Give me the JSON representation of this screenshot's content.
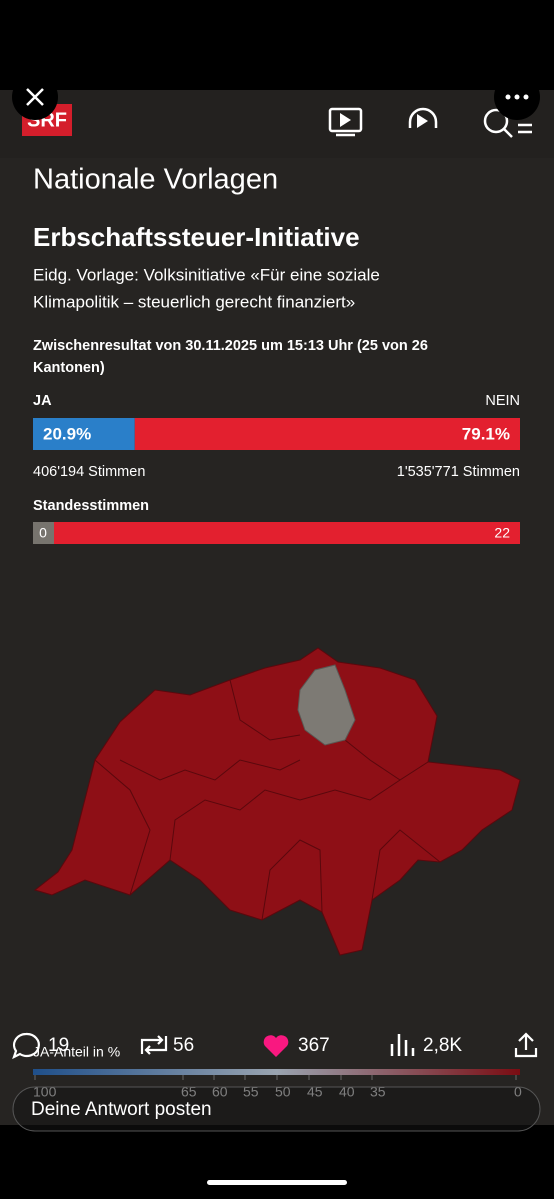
{
  "header": {
    "logo": "SRF"
  },
  "title": "Nationale Vorlagen",
  "subtitle": "Erbschaftssteuer-Initiative",
  "description": [
    "Eidg. Vorlage: Volksinitiative «Für eine soziale",
    "Klimapolitik – steuerlich gerecht finanziert»"
  ],
  "status": [
    "Zwischenresultat von 30.11.2025 um 15:13 Uhr (25 von 26",
    "Kantonen)"
  ],
  "result": {
    "ja_label": "JA",
    "nein_label": "NEIN",
    "ja_share": {
      "value": 20.9,
      "label": "20.9%"
    },
    "nein_share": {
      "value": 79.1,
      "label": "79.1%"
    },
    "ja_votes": "406'194 Stimmen",
    "nein_votes": "1'535'771 Stimmen"
  },
  "cantons": {
    "label": "Standesstimmen",
    "ja": 0,
    "nein": 22
  },
  "legend": {
    "label": "JA-Anteil in %",
    "ticks": [
      100,
      65,
      60,
      55,
      50,
      45,
      40,
      35,
      0
    ]
  },
  "social": {
    "replies": "19",
    "reposts": "56",
    "likes": "367",
    "views": "2,8K",
    "reply_placeholder": "Deine Antwort posten"
  }
}
